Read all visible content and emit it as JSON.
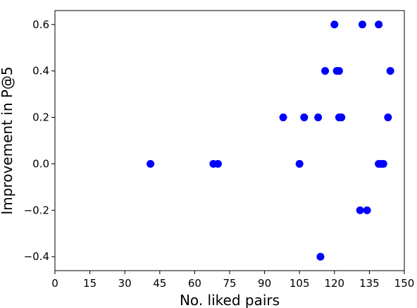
{
  "chart_data": {
    "type": "scatter",
    "title": "",
    "xlabel": "No. liked pairs",
    "ylabel": "Improvement in P@5",
    "xlim": [
      0,
      150
    ],
    "ylim": [
      -0.46,
      0.66
    ],
    "xticks": [
      0,
      15,
      30,
      45,
      60,
      75,
      90,
      105,
      120,
      135,
      150
    ],
    "xtick_labels": [
      "0",
      "15",
      "30",
      "45",
      "60",
      "75",
      "90",
      "105",
      "120",
      "135",
      "150"
    ],
    "yticks": [
      -0.4,
      -0.2,
      0.0,
      0.2,
      0.4,
      0.6
    ],
    "ytick_labels": [
      "−0.4",
      "−0.2",
      "0.0",
      "0.2",
      "0.4",
      "0.6"
    ],
    "grid": false,
    "legend": false,
    "marker_color": "#0000ff",
    "points": [
      {
        "x": 41,
        "y": 0.0
      },
      {
        "x": 68,
        "y": 0.0
      },
      {
        "x": 70,
        "y": 0.0
      },
      {
        "x": 98,
        "y": 0.2
      },
      {
        "x": 105,
        "y": 0.0
      },
      {
        "x": 107,
        "y": 0.2
      },
      {
        "x": 113,
        "y": 0.2
      },
      {
        "x": 114,
        "y": -0.4
      },
      {
        "x": 116,
        "y": 0.4
      },
      {
        "x": 120,
        "y": 0.6
      },
      {
        "x": 121,
        "y": 0.4
      },
      {
        "x": 122,
        "y": 0.4
      },
      {
        "x": 122,
        "y": 0.2
      },
      {
        "x": 123,
        "y": 0.2
      },
      {
        "x": 131,
        "y": -0.2
      },
      {
        "x": 132,
        "y": 0.6
      },
      {
        "x": 134,
        "y": -0.2
      },
      {
        "x": 139,
        "y": 0.6
      },
      {
        "x": 139,
        "y": 0.0
      },
      {
        "x": 140,
        "y": 0.0
      },
      {
        "x": 141,
        "y": 0.0
      },
      {
        "x": 143,
        "y": 0.2
      },
      {
        "x": 144,
        "y": 0.4
      }
    ]
  }
}
